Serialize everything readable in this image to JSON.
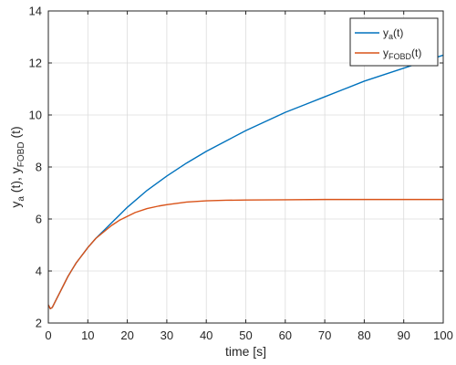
{
  "chart_data": {
    "type": "line",
    "title": "",
    "xlabel": "time [s]",
    "ylabel": {
      "prefix": "y",
      "sub1": "a",
      "mid": " (t), y",
      "sub2": "FOBD",
      "suffix": " (t)"
    },
    "xlim": [
      0,
      100
    ],
    "ylim": [
      2,
      14
    ],
    "xticks": [
      0,
      10,
      20,
      30,
      40,
      50,
      60,
      70,
      80,
      90,
      100
    ],
    "yticks": [
      2,
      4,
      6,
      8,
      10,
      12,
      14
    ],
    "grid": true,
    "legend_position": "top-right",
    "series": [
      {
        "name": "y_a(t)",
        "legend": {
          "base": "y",
          "sub": "a",
          "suffix": "(t)"
        },
        "color": "#0072BD",
        "x": [
          0,
          0.5,
          1,
          2,
          3,
          4,
          5,
          6,
          7,
          8,
          9,
          10,
          12,
          14,
          16,
          18,
          20,
          25,
          30,
          35,
          40,
          45,
          50,
          55,
          60,
          65,
          70,
          75,
          80,
          85,
          90,
          95,
          100
        ],
        "y": [
          2.7,
          2.55,
          2.6,
          2.9,
          3.2,
          3.5,
          3.8,
          4.05,
          4.3,
          4.5,
          4.7,
          4.9,
          5.25,
          5.55,
          5.85,
          6.15,
          6.45,
          7.1,
          7.65,
          8.15,
          8.6,
          9.0,
          9.4,
          9.75,
          10.1,
          10.4,
          10.7,
          11.0,
          11.3,
          11.55,
          11.8,
          12.05,
          12.3
        ]
      },
      {
        "name": "y_FOBD(t)",
        "legend": {
          "base": "y",
          "sub": "FOBD",
          "suffix": "(t)"
        },
        "color": "#D95319",
        "x": [
          0,
          0.5,
          1,
          2,
          3,
          4,
          5,
          6,
          7,
          8,
          9,
          10,
          12,
          14,
          16,
          18,
          20,
          22,
          25,
          28,
          30,
          35,
          40,
          45,
          50,
          60,
          70,
          80,
          90,
          100
        ],
        "y": [
          2.7,
          2.55,
          2.6,
          2.9,
          3.2,
          3.5,
          3.8,
          4.05,
          4.3,
          4.5,
          4.7,
          4.9,
          5.25,
          5.5,
          5.75,
          5.95,
          6.1,
          6.25,
          6.4,
          6.5,
          6.55,
          6.65,
          6.7,
          6.72,
          6.73,
          6.74,
          6.75,
          6.75,
          6.75,
          6.75
        ]
      }
    ]
  }
}
